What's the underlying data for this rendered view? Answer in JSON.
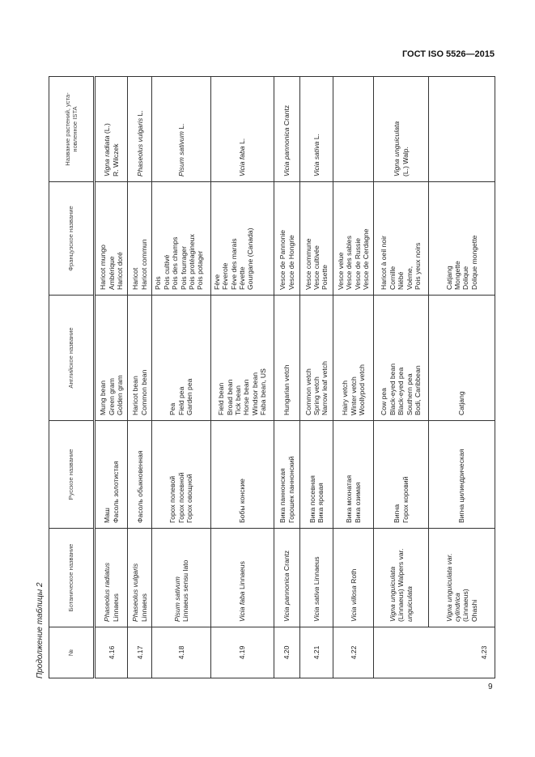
{
  "header": {
    "doc_title": "ГОСТ ISO 5526—2015"
  },
  "caption": "Продолжение таблицы 2",
  "page_number": "9",
  "table": {
    "columns": [
      "№",
      "Ботаническое название",
      "Русское название",
      "Английское название",
      "Французское название",
      "Название растений, уста-новленное ISTA"
    ],
    "rows": [
      {
        "num": "4.16",
        "bot_italic": "Phaseolus radiatus",
        "bot_rest": "Linnaeus",
        "ru": [
          "Маш",
          "Фасоль золотистая"
        ],
        "en": [
          "Mung bean",
          "Green gram",
          "Golden gram"
        ],
        "fr": [
          "Haricot mungo",
          "Ambérique",
          "Haricot doré"
        ],
        "ista_italic": "Vigna radiata",
        "ista_rest": "(L.)",
        "ista_line2": "R. Wilczek"
      },
      {
        "num": "4.17",
        "bot_italic": "Phaseolus vulgaris",
        "bot_rest": "Linnaeus",
        "ru": [
          "Фасоль обыкновенная"
        ],
        "en": [
          "Haricot bean",
          "Common bean"
        ],
        "fr": [
          "Haricot",
          "Haricot commun"
        ],
        "ista_italic": "Phaseolus vulgaris",
        "ista_rest": "L."
      },
      {
        "num": "4.18",
        "bot_italic": "Pisum sativum",
        "bot_rest": "Linnaeus sensu lato",
        "ru": [
          "Горох полевой",
          "Горох посевной",
          "Горох овощной"
        ],
        "en": [
          "Pea",
          "Field pea",
          "Garden pea"
        ],
        "fr": [
          "Pois",
          "Pois cultivé",
          "Pois des champs",
          "Pois fourrager",
          "Pois protéagineux",
          "Pois potager"
        ],
        "ista_italic": "Pisum sativum",
        "ista_rest": "L."
      },
      {
        "num": "4.19",
        "bot_italic": "Vicia faba",
        "bot_rest": "Linnaeus",
        "ru": [
          "Бобы конские"
        ],
        "en": [
          "Field bean",
          "Broad bean",
          "Tick bean",
          "Horse bean",
          "Windsor bean",
          "Faba bean, US"
        ],
        "fr": [
          "Fève",
          "Féverole",
          "Fève des marais",
          "Févette",
          "Gourgane (Canada)"
        ],
        "ista_italic": "Vicia faba",
        "ista_rest": "L."
      },
      {
        "num": "4.20",
        "bot_italic": "Vicia pannonica",
        "bot_rest": "Crantz",
        "ru": [
          "Вика паннонская",
          "Горошек паннонский"
        ],
        "en": [
          "Hungarian vetch"
        ],
        "fr": [
          "Vesce de Pannonie",
          "Vesce de Hongrie"
        ],
        "ista_italic": "Vicia pannonica",
        "ista_rest": "Crantz"
      },
      {
        "num": "4.21",
        "bot_italic": "Vicia sativa",
        "bot_rest": "Linnaeus",
        "ru": [
          "Вика посевная",
          "Вика яровая"
        ],
        "en": [
          "Common vetch",
          "Spring vetch",
          "Narrow leaf vetch"
        ],
        "fr": [
          "Vesce commune",
          "Vesce cultivée",
          "Poisette"
        ],
        "ista_italic": "Vicia sativa",
        "ista_rest": "L."
      },
      {
        "num": "4.22",
        "bot_italic": "Vicia villosa",
        "bot_rest": "Roth",
        "ru": [
          "Вика мохнатая",
          "Вика озимая"
        ],
        "en": [
          "Hairy vetch",
          "Winter vetch",
          "Woollypod vetch"
        ],
        "fr": [
          "Vesce velue",
          "Vesce des sables",
          "Vesce de Russie",
          "Vesce de Cerdagne"
        ],
        "ista_italic": "",
        "ista_rest": ""
      },
      {
        "num": "4.23",
        "bot_italic": "Vigna unguiculata",
        "bot_rest": "(Linnaeus) Walpers var.",
        "bot_italic2": "unguiculata",
        "ru": [
          "Вигна",
          "Горох коровий"
        ],
        "en": [
          "Cow pea",
          "Black-eyed bean",
          "Black-eyed pea",
          "Southern pea",
          "Bodi, Caribbean"
        ],
        "fr": [
          "Haricot à oeil noir",
          "Cornille",
          "Niébé",
          "Voème,",
          "Pois yeux noirs"
        ],
        "ista_italic": "Vigna unguiculata",
        "ista_rest": "",
        "ista_line2": "(L.) Walp."
      },
      {
        "num": "",
        "bot_italic": "Vigna unguiculata var. cylindrica",
        "bot_rest": "(Linnaeus)",
        "bot_line3": "Ohashi",
        "ru": [
          "Вигна цилиндрическая"
        ],
        "en": [
          "Catjang"
        ],
        "fr": [
          "Catjang",
          "Mongette",
          "Dolique",
          "Dolique mongette"
        ],
        "ista_italic": "",
        "ista_rest": ""
      }
    ]
  }
}
